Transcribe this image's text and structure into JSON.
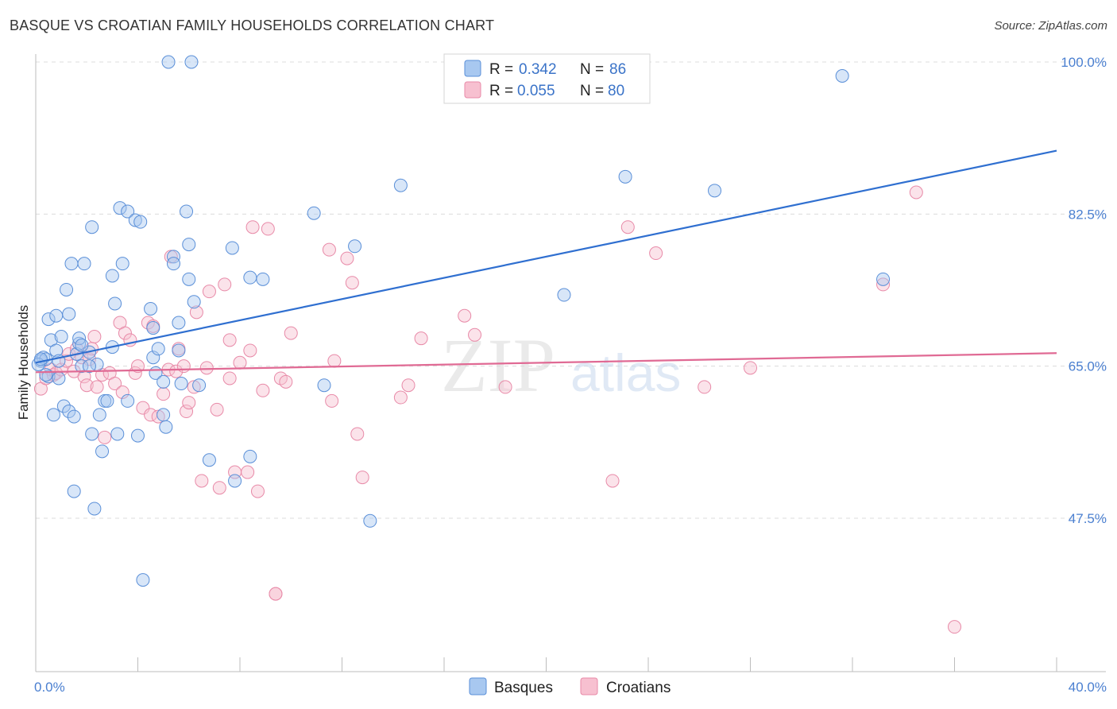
{
  "title": "BASQUE VS CROATIAN FAMILY HOUSEHOLDS CORRELATION CHART",
  "source": "Source: ZipAtlas.com",
  "watermark": {
    "zip": "ZIP",
    "atlas": "atlas"
  },
  "chart_data": {
    "type": "scatter",
    "ylabel": "Family Households",
    "xlabel": "",
    "xlim": [
      0,
      40
    ],
    "ylim": [
      33,
      101
    ],
    "x_ticks": [
      0,
      4,
      8,
      12,
      16,
      20,
      24,
      28,
      32,
      36,
      40
    ],
    "x_tick_labels": [
      {
        "value": 0,
        "label": "0.0%"
      },
      {
        "value": 40,
        "label": "40.0%"
      }
    ],
    "y_ticks": [
      {
        "value": 100,
        "label": "100.0%"
      },
      {
        "value": 82.5,
        "label": "82.5%"
      },
      {
        "value": 65,
        "label": "65.0%"
      },
      {
        "value": 47.5,
        "label": "47.5%"
      }
    ],
    "grid": "horizontal-dashed",
    "legend_position": "top-center",
    "legend": [
      {
        "r_label": "R =",
        "r_value": "0.342",
        "n_label": "N =",
        "n_value": "86"
      },
      {
        "r_label": "R =",
        "r_value": "0.055",
        "n_label": "N =",
        "n_value": "80"
      }
    ],
    "colors": {
      "basques_fill": "#a8c8f0",
      "basques_stroke": "#5a8fd8",
      "basques_line": "#2f6fd0",
      "croatians_fill": "#f7c0d0",
      "croatians_stroke": "#e88aa8",
      "croatians_line": "#e06a94"
    },
    "series": [
      {
        "name": "Basques",
        "trend": {
          "x": [
            0,
            40
          ],
          "y": [
            65.4,
            89.8
          ]
        },
        "points": [
          [
            0.2,
            65.6
          ],
          [
            0.3,
            66.0
          ],
          [
            0.4,
            65.8
          ],
          [
            0.5,
            63.8
          ],
          [
            0.5,
            70.4
          ],
          [
            0.6,
            68.0
          ],
          [
            0.7,
            59.4
          ],
          [
            0.8,
            66.8
          ],
          [
            0.8,
            70.8
          ],
          [
            0.9,
            65.6
          ],
          [
            1.0,
            68.4
          ],
          [
            1.1,
            60.4
          ],
          [
            1.2,
            73.8
          ],
          [
            1.3,
            59.8
          ],
          [
            1.3,
            71.0
          ],
          [
            1.4,
            76.8
          ],
          [
            1.5,
            59.2
          ],
          [
            1.5,
            50.6
          ],
          [
            1.6,
            66.4
          ],
          [
            1.7,
            67.6
          ],
          [
            1.7,
            68.2
          ],
          [
            1.8,
            65.0
          ],
          [
            1.9,
            76.8
          ],
          [
            2.1,
            66.6
          ],
          [
            2.2,
            57.2
          ],
          [
            2.2,
            81.0
          ],
          [
            2.3,
            48.6
          ],
          [
            2.4,
            65.2
          ],
          [
            2.5,
            59.4
          ],
          [
            2.6,
            55.2
          ],
          [
            2.7,
            61.0
          ],
          [
            2.8,
            61.0
          ],
          [
            3.0,
            67.2
          ],
          [
            3.0,
            75.4
          ],
          [
            3.1,
            72.2
          ],
          [
            3.2,
            57.2
          ],
          [
            3.3,
            83.2
          ],
          [
            3.4,
            76.8
          ],
          [
            3.6,
            61.0
          ],
          [
            3.6,
            82.8
          ],
          [
            3.9,
            81.8
          ],
          [
            4.0,
            57.0
          ],
          [
            4.1,
            81.6
          ],
          [
            4.2,
            40.4
          ],
          [
            4.5,
            71.6
          ],
          [
            4.6,
            66.0
          ],
          [
            4.6,
            69.4
          ],
          [
            4.7,
            64.2
          ],
          [
            4.8,
            67.0
          ],
          [
            5.0,
            63.2
          ],
          [
            5.0,
            59.4
          ],
          [
            5.1,
            58.0
          ],
          [
            5.2,
            100.0
          ],
          [
            5.4,
            77.6
          ],
          [
            5.4,
            76.8
          ],
          [
            5.6,
            70.0
          ],
          [
            5.6,
            66.8
          ],
          [
            5.7,
            63.0
          ],
          [
            5.9,
            82.8
          ],
          [
            6.0,
            79.0
          ],
          [
            6.0,
            75.0
          ],
          [
            6.1,
            100.0
          ],
          [
            6.2,
            72.4
          ],
          [
            6.4,
            62.8
          ],
          [
            6.8,
            54.2
          ],
          [
            7.7,
            78.6
          ],
          [
            7.8,
            51.8
          ],
          [
            8.4,
            75.2
          ],
          [
            8.4,
            54.6
          ],
          [
            8.9,
            75.0
          ],
          [
            10.9,
            82.6
          ],
          [
            11.3,
            62.8
          ],
          [
            12.5,
            78.8
          ],
          [
            13.1,
            47.2
          ],
          [
            14.3,
            85.8
          ],
          [
            20.7,
            73.2
          ],
          [
            23.1,
            86.8
          ],
          [
            26.6,
            85.2
          ],
          [
            31.6,
            98.4
          ],
          [
            33.2,
            75.0
          ],
          [
            0.1,
            65.2
          ],
          [
            0.2,
            65.8
          ],
          [
            0.4,
            64.0
          ],
          [
            1.8,
            67.4
          ],
          [
            2.1,
            65.0
          ],
          [
            0.9,
            63.6
          ]
        ]
      },
      {
        "name": "Croatians",
        "trend": {
          "x": [
            0,
            40
          ],
          "y": [
            64.3,
            66.5
          ]
        },
        "points": [
          [
            0.2,
            62.4
          ],
          [
            0.4,
            63.6
          ],
          [
            0.6,
            64.6
          ],
          [
            0.7,
            64.0
          ],
          [
            0.8,
            64.2
          ],
          [
            1.0,
            64.6
          ],
          [
            1.2,
            65.6
          ],
          [
            1.3,
            66.4
          ],
          [
            1.5,
            64.4
          ],
          [
            1.6,
            67.0
          ],
          [
            1.8,
            66.0
          ],
          [
            1.9,
            63.8
          ],
          [
            2.0,
            62.8
          ],
          [
            2.1,
            65.8
          ],
          [
            2.2,
            67.0
          ],
          [
            2.3,
            68.4
          ],
          [
            2.4,
            62.6
          ],
          [
            2.6,
            64.0
          ],
          [
            2.7,
            56.8
          ],
          [
            2.9,
            64.2
          ],
          [
            3.1,
            63.0
          ],
          [
            3.3,
            70.0
          ],
          [
            3.4,
            62.0
          ],
          [
            3.5,
            68.8
          ],
          [
            3.7,
            68.0
          ],
          [
            3.9,
            64.2
          ],
          [
            4.0,
            65.0
          ],
          [
            4.2,
            60.2
          ],
          [
            4.4,
            70.0
          ],
          [
            4.5,
            59.4
          ],
          [
            4.6,
            69.6
          ],
          [
            4.8,
            59.2
          ],
          [
            5.0,
            61.8
          ],
          [
            5.2,
            64.6
          ],
          [
            5.3,
            77.6
          ],
          [
            5.5,
            64.4
          ],
          [
            5.6,
            67.0
          ],
          [
            5.8,
            65.0
          ],
          [
            5.9,
            59.8
          ],
          [
            6.0,
            60.8
          ],
          [
            6.2,
            62.6
          ],
          [
            6.3,
            71.2
          ],
          [
            6.5,
            51.8
          ],
          [
            6.7,
            64.8
          ],
          [
            6.8,
            73.6
          ],
          [
            7.1,
            60.0
          ],
          [
            7.2,
            51.0
          ],
          [
            7.4,
            74.4
          ],
          [
            7.6,
            68.0
          ],
          [
            7.6,
            63.6
          ],
          [
            7.8,
            52.8
          ],
          [
            8.0,
            65.4
          ],
          [
            8.3,
            52.8
          ],
          [
            8.4,
            66.8
          ],
          [
            8.5,
            81.0
          ],
          [
            8.7,
            50.6
          ],
          [
            8.9,
            62.2
          ],
          [
            9.1,
            80.8
          ],
          [
            9.4,
            38.8
          ],
          [
            9.6,
            63.6
          ],
          [
            9.8,
            63.2
          ],
          [
            10.0,
            68.8
          ],
          [
            11.5,
            78.4
          ],
          [
            11.6,
            61.0
          ],
          [
            11.7,
            65.6
          ],
          [
            12.2,
            77.4
          ],
          [
            12.4,
            74.6
          ],
          [
            12.6,
            57.2
          ],
          [
            12.8,
            52.2
          ],
          [
            14.3,
            61.4
          ],
          [
            14.6,
            62.8
          ],
          [
            15.1,
            68.2
          ],
          [
            16.8,
            70.8
          ],
          [
            17.2,
            68.6
          ],
          [
            18.4,
            62.6
          ],
          [
            22.6,
            51.8
          ],
          [
            23.2,
            81.0
          ],
          [
            24.3,
            78.0
          ],
          [
            28.0,
            64.8
          ],
          [
            36.0,
            35.0
          ]
        ],
        "extra_points": [
          [
            26.2,
            62.6
          ],
          [
            33.2,
            74.4
          ],
          [
            34.5,
            85.0
          ],
          [
            9.4,
            38.8
          ]
        ]
      }
    ]
  }
}
